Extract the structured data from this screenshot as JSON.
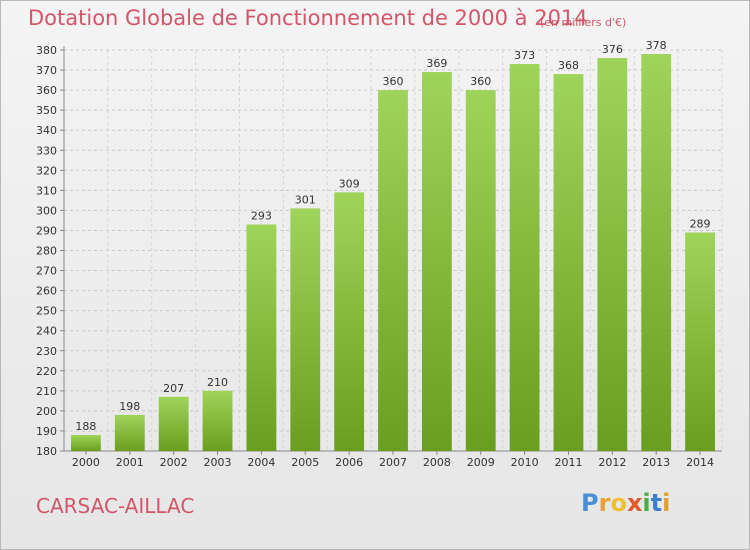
{
  "title": "Dotation Globale de Fonctionnement de 2000 à 2014",
  "subtitle": "(en milliers d'€)",
  "commune": "CARSAC-AILLAC",
  "logo": {
    "letters": [
      "P",
      "r",
      "o",
      "x",
      "i",
      "t",
      "i"
    ],
    "colors": [
      "#4a8fd4",
      "#e8a03a",
      "#f0c030",
      "#e05a2a",
      "#4ab040",
      "#3a7fc8",
      "#e0a030"
    ]
  },
  "colors": {
    "bar_top": "#9fd45a",
    "bar_bottom": "#6a9e1e",
    "title": "#d2566a"
  },
  "chart_data": {
    "type": "bar",
    "title": "Dotation Globale de Fonctionnement de 2000 à 2014",
    "subtitle": "(en milliers d'€)",
    "categories": [
      "2000",
      "2001",
      "2002",
      "2003",
      "2004",
      "2005",
      "2006",
      "2007",
      "2008",
      "2009",
      "2010",
      "2011",
      "2012",
      "2013",
      "2014"
    ],
    "values": [
      188,
      198,
      207,
      210,
      293,
      301,
      309,
      360,
      369,
      360,
      373,
      368,
      376,
      378,
      289
    ],
    "ylim": [
      180,
      380
    ],
    "yticks": [
      180,
      190,
      200,
      210,
      220,
      230,
      240,
      250,
      260,
      270,
      280,
      290,
      300,
      310,
      320,
      330,
      340,
      350,
      360,
      370,
      380
    ],
    "grid": true,
    "legend": "none"
  }
}
